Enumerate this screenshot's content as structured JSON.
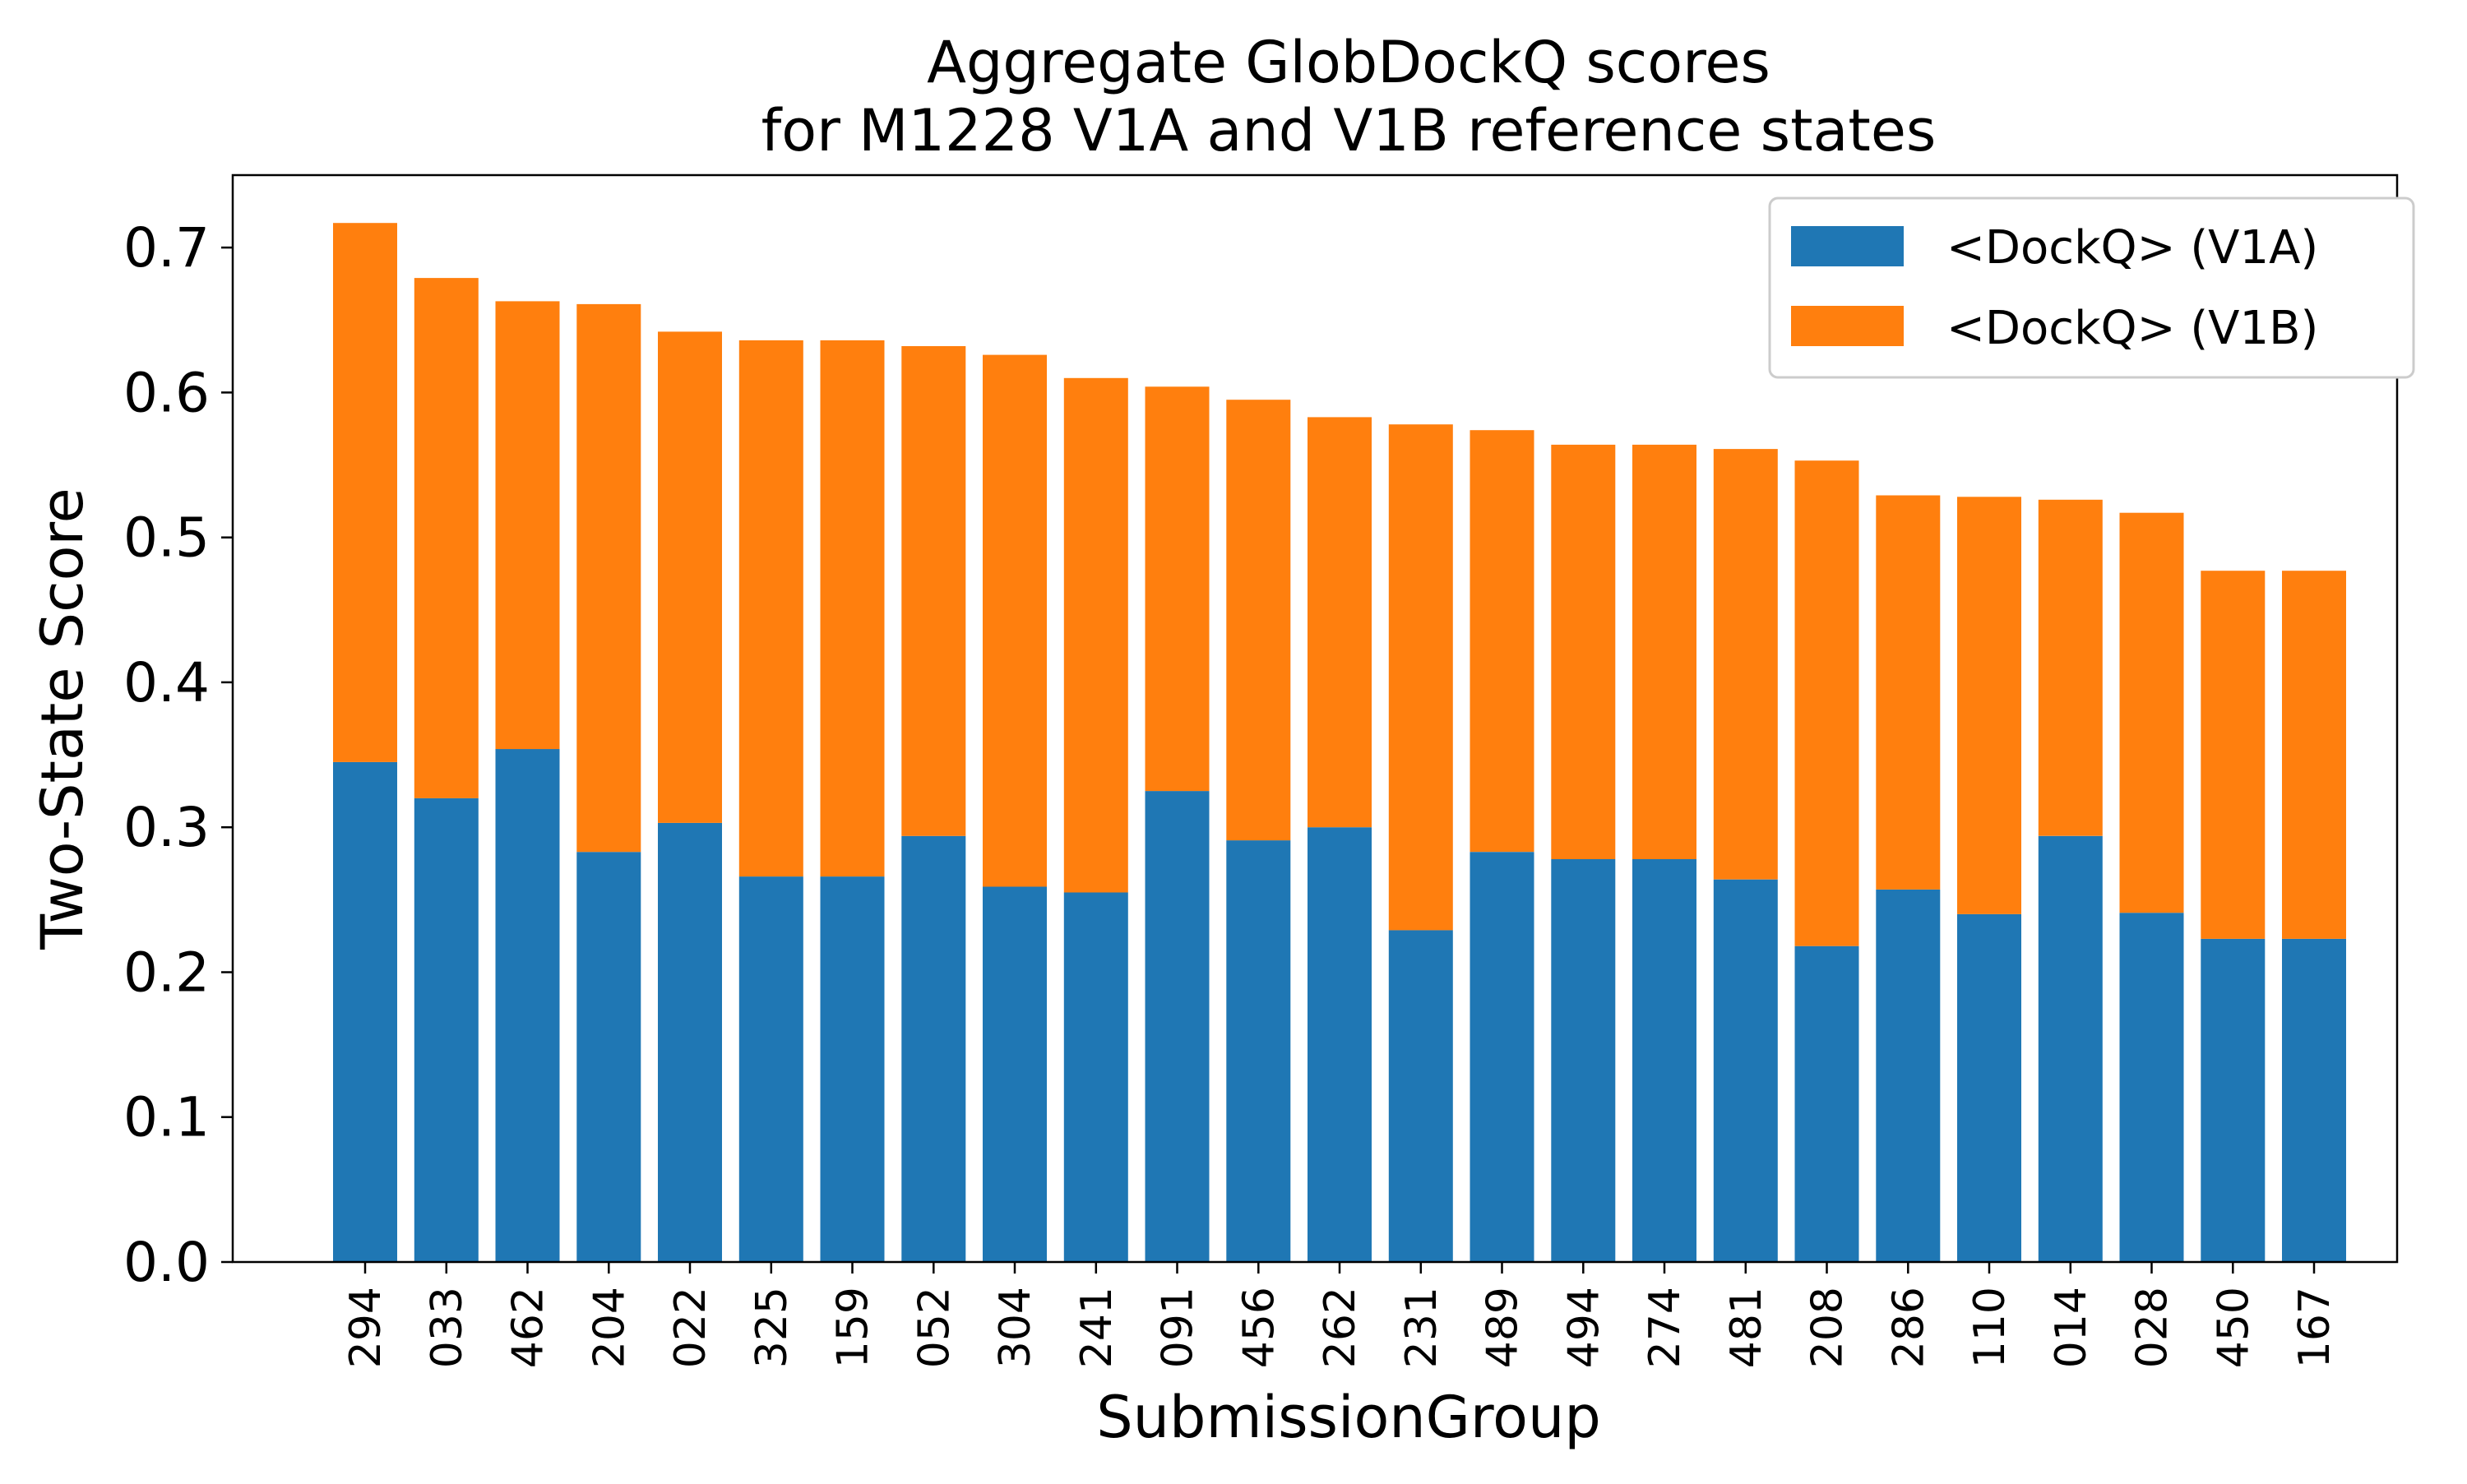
{
  "chart_data": {
    "type": "bar",
    "stacked": true,
    "title_lines": [
      "Aggregate GlobDockQ scores",
      "for M1228 V1A and V1B reference states"
    ],
    "xlabel": "SubmissionGroup",
    "ylabel": "Two-State Score",
    "ylim": [
      0,
      0.75
    ],
    "yticks": [
      0.0,
      0.1,
      0.2,
      0.3,
      0.4,
      0.5,
      0.6,
      0.7
    ],
    "ytick_labels": [
      "0.0",
      "0.1",
      "0.2",
      "0.3",
      "0.4",
      "0.5",
      "0.6",
      "0.7"
    ],
    "grid": false,
    "legend_position": "top-right",
    "categories": [
      "294",
      "033",
      "462",
      "204",
      "022",
      "325",
      "159",
      "052",
      "304",
      "241",
      "091",
      "456",
      "262",
      "231",
      "489",
      "494",
      "274",
      "481",
      "208",
      "286",
      "110",
      "014",
      "028",
      "450",
      "167"
    ],
    "series": [
      {
        "name": "<DockQ> (V1A)",
        "color": "#1f77b4",
        "values": [
          0.345,
          0.32,
          0.354,
          0.283,
          0.303,
          0.266,
          0.266,
          0.294,
          0.259,
          0.255,
          0.325,
          0.291,
          0.3,
          0.229,
          0.283,
          0.278,
          0.278,
          0.264,
          0.218,
          0.257,
          0.24,
          0.294,
          0.241,
          0.223,
          0.223
        ]
      },
      {
        "name": "<DockQ> (V1B)",
        "color": "#ff7f0e",
        "values": [
          0.372,
          0.359,
          0.309,
          0.378,
          0.339,
          0.37,
          0.37,
          0.338,
          0.367,
          0.355,
          0.279,
          0.304,
          0.283,
          0.349,
          0.291,
          0.286,
          0.286,
          0.297,
          0.335,
          0.272,
          0.288,
          0.232,
          0.276,
          0.254,
          0.254
        ]
      }
    ]
  }
}
